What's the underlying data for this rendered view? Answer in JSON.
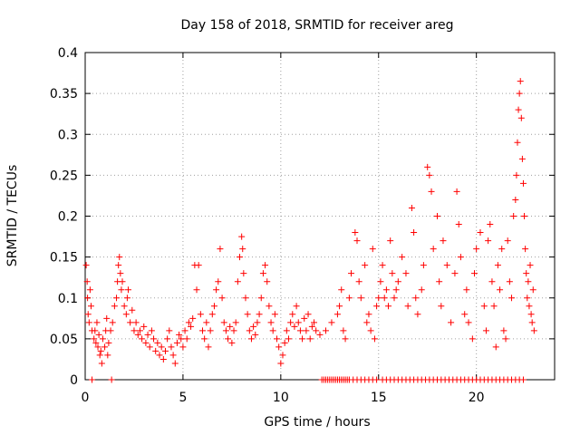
{
  "chart_data": {
    "type": "scatter",
    "title": "Day 158 of 2018, SRMTID for receiver areg",
    "xlabel": "GPS time / hours",
    "ylabel": "SRMTID / TECUs",
    "xlim": [
      0,
      24
    ],
    "ylim": [
      0,
      0.4
    ],
    "x_ticks": [
      0,
      5,
      10,
      15,
      20
    ],
    "x_tick_labels": [
      "0",
      "5",
      "10",
      "15",
      "20"
    ],
    "y_ticks": [
      0,
      0.05,
      0.1,
      0.15,
      0.2,
      0.25,
      0.3,
      0.35,
      0.4
    ],
    "y_tick_labels": [
      "0",
      "0.05",
      "0.1",
      "0.15",
      "0.2",
      "0.25",
      "0.3",
      "0.35",
      "0.4"
    ],
    "grid": true,
    "marker": "+",
    "color": "#ff0000",
    "series": [
      {
        "name": "SRMTID",
        "points": [
          [
            0.05,
            0.14
          ],
          [
            0.1,
            0.12
          ],
          [
            0.12,
            0.1
          ],
          [
            0.15,
            0.08
          ],
          [
            0.2,
            0.07
          ],
          [
            0.25,
            0.11
          ],
          [
            0.3,
            0.09
          ],
          [
            0.35,
            0.06
          ],
          [
            0.45,
            0.05
          ],
          [
            0.5,
            0.06
          ],
          [
            0.55,
            0.045
          ],
          [
            0.6,
            0.07
          ],
          [
            0.65,
            0.04
          ],
          [
            0.7,
            0.055
          ],
          [
            0.75,
            0.03
          ],
          [
            0.8,
            0.035
          ],
          [
            0.85,
            0.02
          ],
          [
            0.9,
            0.05
          ],
          [
            1.0,
            0.04
          ],
          [
            1.05,
            0.06
          ],
          [
            1.1,
            0.075
          ],
          [
            1.15,
            0.03
          ],
          [
            1.2,
            0.045
          ],
          [
            1.3,
            0.06
          ],
          [
            1.4,
            0.07
          ],
          [
            1.5,
            0.09
          ],
          [
            1.6,
            0.1
          ],
          [
            1.65,
            0.12
          ],
          [
            1.7,
            0.14
          ],
          [
            1.75,
            0.15
          ],
          [
            1.8,
            0.13
          ],
          [
            1.85,
            0.11
          ],
          [
            1.9,
            0.12
          ],
          [
            2.0,
            0.09
          ],
          [
            2.1,
            0.08
          ],
          [
            2.15,
            0.1
          ],
          [
            2.2,
            0.11
          ],
          [
            2.3,
            0.07
          ],
          [
            2.4,
            0.085
          ],
          [
            2.5,
            0.06
          ],
          [
            2.6,
            0.07
          ],
          [
            2.7,
            0.055
          ],
          [
            2.8,
            0.06
          ],
          [
            2.9,
            0.05
          ],
          [
            3.0,
            0.065
          ],
          [
            3.1,
            0.045
          ],
          [
            3.2,
            0.055
          ],
          [
            3.3,
            0.04
          ],
          [
            3.4,
            0.06
          ],
          [
            3.5,
            0.05
          ],
          [
            3.6,
            0.035
          ],
          [
            3.7,
            0.045
          ],
          [
            3.8,
            0.03
          ],
          [
            3.9,
            0.04
          ],
          [
            4.0,
            0.025
          ],
          [
            4.1,
            0.035
          ],
          [
            4.2,
            0.05
          ],
          [
            4.3,
            0.06
          ],
          [
            4.4,
            0.04
          ],
          [
            4.5,
            0.03
          ],
          [
            4.6,
            0.02
          ],
          [
            4.7,
            0.045
          ],
          [
            4.8,
            0.055
          ],
          [
            4.9,
            0.05
          ],
          [
            5.0,
            0.04
          ],
          [
            5.1,
            0.06
          ],
          [
            5.2,
            0.05
          ],
          [
            5.3,
            0.07
          ],
          [
            5.4,
            0.065
          ],
          [
            5.5,
            0.075
          ],
          [
            5.6,
            0.14
          ],
          [
            5.7,
            0.11
          ],
          [
            5.8,
            0.14
          ],
          [
            5.9,
            0.08
          ],
          [
            6.0,
            0.06
          ],
          [
            6.1,
            0.05
          ],
          [
            6.2,
            0.07
          ],
          [
            6.3,
            0.04
          ],
          [
            6.4,
            0.06
          ],
          [
            6.5,
            0.08
          ],
          [
            6.6,
            0.09
          ],
          [
            6.7,
            0.11
          ],
          [
            6.8,
            0.12
          ],
          [
            6.9,
            0.16
          ],
          [
            7.0,
            0.1
          ],
          [
            7.1,
            0.07
          ],
          [
            7.2,
            0.06
          ],
          [
            7.3,
            0.05
          ],
          [
            7.4,
            0.065
          ],
          [
            7.5,
            0.045
          ],
          [
            7.6,
            0.06
          ],
          [
            7.7,
            0.07
          ],
          [
            7.8,
            0.12
          ],
          [
            7.9,
            0.15
          ],
          [
            8.0,
            0.175
          ],
          [
            8.05,
            0.16
          ],
          [
            8.1,
            0.13
          ],
          [
            8.2,
            0.1
          ],
          [
            8.3,
            0.08
          ],
          [
            8.4,
            0.06
          ],
          [
            8.5,
            0.05
          ],
          [
            8.6,
            0.065
          ],
          [
            8.7,
            0.055
          ],
          [
            8.8,
            0.07
          ],
          [
            8.9,
            0.08
          ],
          [
            9.0,
            0.1
          ],
          [
            9.1,
            0.13
          ],
          [
            9.2,
            0.14
          ],
          [
            9.3,
            0.12
          ],
          [
            9.4,
            0.09
          ],
          [
            9.5,
            0.07
          ],
          [
            9.6,
            0.06
          ],
          [
            9.7,
            0.08
          ],
          [
            9.8,
            0.05
          ],
          [
            9.9,
            0.04
          ],
          [
            10.0,
            0.02
          ],
          [
            10.1,
            0.03
          ],
          [
            10.2,
            0.045
          ],
          [
            10.3,
            0.06
          ],
          [
            10.4,
            0.05
          ],
          [
            10.5,
            0.07
          ],
          [
            10.6,
            0.08
          ],
          [
            10.7,
            0.065
          ],
          [
            10.8,
            0.09
          ],
          [
            10.9,
            0.07
          ],
          [
            11.0,
            0.06
          ],
          [
            11.1,
            0.05
          ],
          [
            11.2,
            0.075
          ],
          [
            11.3,
            0.06
          ],
          [
            11.4,
            0.08
          ],
          [
            11.5,
            0.05
          ],
          [
            11.6,
            0.065
          ],
          [
            11.7,
            0.07
          ],
          [
            11.8,
            0.06
          ],
          [
            12.0,
            0.055
          ],
          [
            12.3,
            0.06
          ],
          [
            12.6,
            0.07
          ],
          [
            12.9,
            0.08
          ],
          [
            13.0,
            0.09
          ],
          [
            13.1,
            0.11
          ],
          [
            13.2,
            0.06
          ],
          [
            13.3,
            0.05
          ],
          [
            13.5,
            0.1
          ],
          [
            13.6,
            0.13
          ],
          [
            13.8,
            0.18
          ],
          [
            13.9,
            0.17
          ],
          [
            14.0,
            0.12
          ],
          [
            14.1,
            0.1
          ],
          [
            14.3,
            0.14
          ],
          [
            14.4,
            0.07
          ],
          [
            14.5,
            0.08
          ],
          [
            14.6,
            0.06
          ],
          [
            14.7,
            0.16
          ],
          [
            14.8,
            0.05
          ],
          [
            14.9,
            0.09
          ],
          [
            15.0,
            0.1
          ],
          [
            15.1,
            0.12
          ],
          [
            15.2,
            0.14
          ],
          [
            15.3,
            0.1
          ],
          [
            15.4,
            0.11
          ],
          [
            15.5,
            0.09
          ],
          [
            15.6,
            0.17
          ],
          [
            15.7,
            0.13
          ],
          [
            15.8,
            0.1
          ],
          [
            15.9,
            0.11
          ],
          [
            16.0,
            0.12
          ],
          [
            16.2,
            0.15
          ],
          [
            16.4,
            0.13
          ],
          [
            16.5,
            0.09
          ],
          [
            16.7,
            0.21
          ],
          [
            16.8,
            0.18
          ],
          [
            16.9,
            0.1
          ],
          [
            17.0,
            0.08
          ],
          [
            17.2,
            0.11
          ],
          [
            17.3,
            0.14
          ],
          [
            17.5,
            0.26
          ],
          [
            17.6,
            0.25
          ],
          [
            17.7,
            0.23
          ],
          [
            17.8,
            0.16
          ],
          [
            18.0,
            0.2
          ],
          [
            18.1,
            0.12
          ],
          [
            18.2,
            0.09
          ],
          [
            18.3,
            0.17
          ],
          [
            18.5,
            0.14
          ],
          [
            18.7,
            0.07
          ],
          [
            18.9,
            0.13
          ],
          [
            19.0,
            0.23
          ],
          [
            19.1,
            0.19
          ],
          [
            19.2,
            0.15
          ],
          [
            19.4,
            0.08
          ],
          [
            19.5,
            0.11
          ],
          [
            19.6,
            0.07
          ],
          [
            19.8,
            0.05
          ],
          [
            19.9,
            0.13
          ],
          [
            20.0,
            0.16
          ],
          [
            20.2,
            0.18
          ],
          [
            20.4,
            0.09
          ],
          [
            20.5,
            0.06
          ],
          [
            20.6,
            0.17
          ],
          [
            20.7,
            0.19
          ],
          [
            20.8,
            0.12
          ],
          [
            20.9,
            0.09
          ],
          [
            21.0,
            0.04
          ],
          [
            21.1,
            0.14
          ],
          [
            21.2,
            0.11
          ],
          [
            21.3,
            0.16
          ],
          [
            21.4,
            0.06
          ],
          [
            21.5,
            0.05
          ],
          [
            21.6,
            0.17
          ],
          [
            21.7,
            0.12
          ],
          [
            21.8,
            0.1
          ],
          [
            21.9,
            0.2
          ],
          [
            22.0,
            0.22
          ],
          [
            22.05,
            0.25
          ],
          [
            22.1,
            0.29
          ],
          [
            22.15,
            0.33
          ],
          [
            22.2,
            0.35
          ],
          [
            22.25,
            0.365
          ],
          [
            22.3,
            0.32
          ],
          [
            22.35,
            0.27
          ],
          [
            22.4,
            0.24
          ],
          [
            22.45,
            0.2
          ],
          [
            22.5,
            0.16
          ],
          [
            22.55,
            0.13
          ],
          [
            22.6,
            0.1
          ],
          [
            22.65,
            0.12
          ],
          [
            22.7,
            0.09
          ],
          [
            22.75,
            0.14
          ],
          [
            22.8,
            0.08
          ],
          [
            22.85,
            0.07
          ],
          [
            22.9,
            0.11
          ],
          [
            22.95,
            0.06
          ]
        ]
      }
    ],
    "zero_markers_x": [
      0.35,
      1.35,
      12.1,
      12.2,
      12.3,
      12.4,
      12.5,
      12.6,
      12.7,
      12.8,
      12.9,
      13.0,
      13.1,
      13.2,
      13.3,
      13.4,
      13.5,
      13.7,
      13.9,
      14.1,
      14.3,
      14.5,
      14.7,
      14.9,
      15.2,
      15.4,
      15.6,
      15.8,
      16.0,
      16.2,
      16.4,
      16.6,
      16.8,
      17.0,
      17.2,
      17.4,
      17.6,
      17.8,
      18.0,
      18.2,
      18.4,
      18.6,
      18.8,
      19.0,
      19.2,
      19.4,
      19.6,
      19.8,
      20.0,
      20.2,
      20.4,
      20.6,
      20.8,
      21.0,
      21.2,
      21.4,
      21.6,
      21.8,
      22.0,
      22.2,
      22.4
    ]
  }
}
